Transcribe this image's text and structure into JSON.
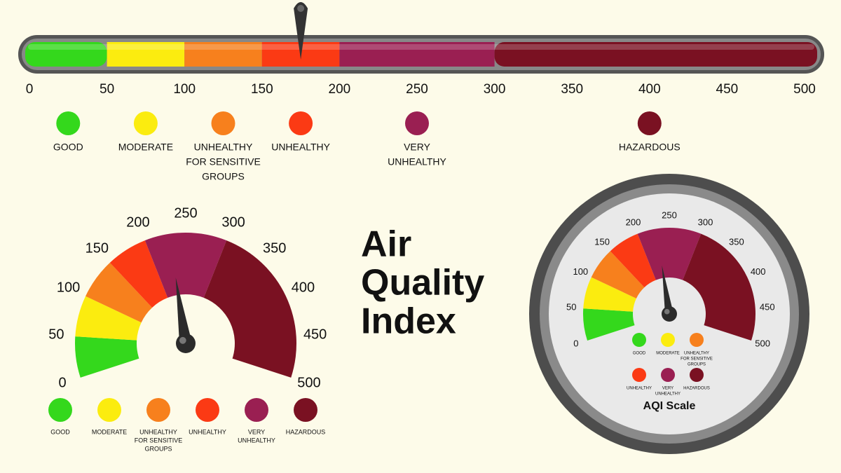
{
  "title": [
    "Air",
    "Quality",
    "Index"
  ],
  "gauge_title": "AQI Scale",
  "scale": {
    "ticks": [
      0,
      50,
      100,
      150,
      200,
      250,
      300,
      350,
      400,
      450,
      500
    ]
  },
  "levels": [
    {
      "label": [
        "GOOD"
      ],
      "upto": 50,
      "color": "#34d81c"
    },
    {
      "label": [
        "MODERATE"
      ],
      "upto": 100,
      "color": "#fbec0f"
    },
    {
      "label": [
        "UNHEALTHY",
        "FOR SENSITIVE",
        "GROUPS"
      ],
      "upto": 150,
      "color": "#f7801d"
    },
    {
      "label": [
        "UNHEALTHY"
      ],
      "upto": 200,
      "color": "#fb3a14"
    },
    {
      "label": [
        "VERY",
        "UNHEALTHY"
      ],
      "upto": 300,
      "color": "#9a1f52"
    },
    {
      "label": [
        "HAZARDOUS"
      ],
      "upto": 500,
      "color": "#7a1122"
    }
  ],
  "bar_pointer": 175,
  "gauge_pointer": 230
}
